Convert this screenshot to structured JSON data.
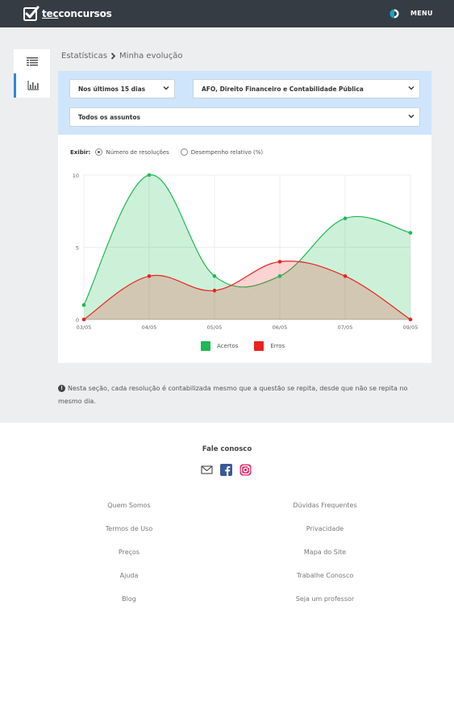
{
  "header": {
    "logo_prefix": "tec",
    "logo_suffix": "concursos",
    "menu_label": "MENU",
    "contrast_icon": "contrast-icon"
  },
  "sidebar": {
    "items": [
      {
        "icon": "list-icon",
        "active": false
      },
      {
        "icon": "bar-chart-icon",
        "active": true
      }
    ]
  },
  "breadcrumb": {
    "parent": "Estatísticas",
    "current": "Minha evolução"
  },
  "filters": {
    "period": "Nos últimos 15 dias",
    "subject": "AFO, Direito Financeiro e Contabilidade Pública",
    "topics": "Todos os assuntos"
  },
  "display": {
    "label": "Exibir:",
    "options": [
      "Número de resoluções",
      "Desempenho relativo (%)"
    ],
    "selected_index": 0
  },
  "chart_data": {
    "type": "area",
    "x": [
      "03/05",
      "04/05",
      "05/05",
      "06/05",
      "07/05",
      "09/05"
    ],
    "y_ticks": [
      0,
      5,
      10
    ],
    "ylim": [
      0,
      10
    ],
    "grid": true,
    "legend_position": "bottom",
    "series": [
      {
        "name": "Acertos",
        "color": "#1db954",
        "values": [
          1,
          10,
          3,
          3,
          7,
          6
        ]
      },
      {
        "name": "Erros",
        "color": "#e8231f",
        "values": [
          0,
          3,
          2,
          4,
          3,
          0
        ]
      }
    ]
  },
  "note": {
    "text": "Nesta seção, cada resolução é contabilizada mesmo que a questão se repita, desde que não se repita no mesmo dia."
  },
  "footer": {
    "contact_title": "Fale conosco",
    "social": [
      "email-icon",
      "facebook-icon",
      "instagram-icon"
    ],
    "left_links": [
      "Quem Somos",
      "Termos de Uso",
      "Preços",
      "Ajuda",
      "Blog"
    ],
    "right_links": [
      "Dúvidas Frequentes",
      "Privacidade",
      "Mapa do Site",
      "Trabalhe Conosco",
      "Seja um professor"
    ]
  }
}
